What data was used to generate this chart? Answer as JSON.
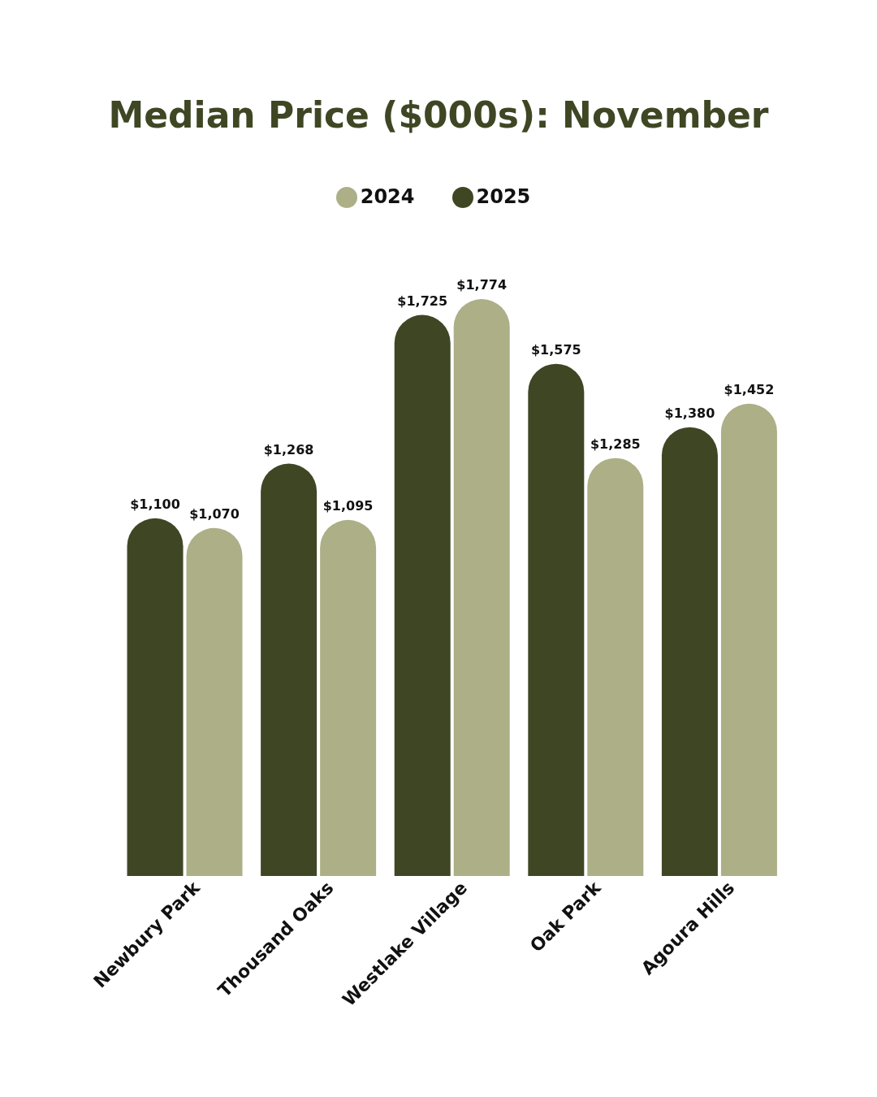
{
  "chart_data": {
    "type": "bar",
    "title": "Median Price ($000s): November",
    "categories": [
      "Newbury Park",
      "Thousand Oaks",
      "Westlake Village",
      "Oak Park",
      "Agoura Hills"
    ],
    "series": [
      {
        "name": "2025",
        "color": "#3f4624",
        "values": [
          1100,
          1268,
          1725,
          1575,
          1380
        ],
        "value_labels": [
          "$1,100",
          "$1,268",
          "$1,725",
          "$1,575",
          "$1,380"
        ]
      },
      {
        "name": "2024",
        "color": "#adaf87",
        "values": [
          1070,
          1095,
          1774,
          1285,
          1452
        ],
        "value_labels": [
          "$1,070",
          "$1,095",
          "$1,774",
          "$1,285",
          "$1,452"
        ]
      }
    ],
    "legend": "top"
  }
}
